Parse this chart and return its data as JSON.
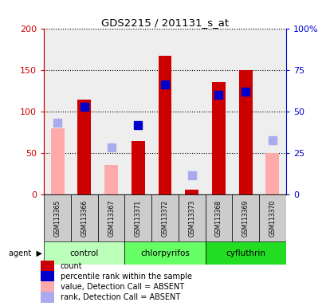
{
  "title": "GDS2215 / 201131_s_at",
  "samples": [
    "GSM113365",
    "GSM113366",
    "GSM113367",
    "GSM113371",
    "GSM113372",
    "GSM113373",
    "GSM113368",
    "GSM113369",
    "GSM113370"
  ],
  "groups": [
    {
      "name": "control",
      "samples_idx": [
        0,
        1,
        2
      ],
      "color": "#bbffbb"
    },
    {
      "name": "chlorpyrifos",
      "samples_idx": [
        3,
        4,
        5
      ],
      "color": "#77ff77"
    },
    {
      "name": "cyfluthrin",
      "samples_idx": [
        6,
        7,
        8
      ],
      "color": "#33ee33"
    }
  ],
  "red_bars": [
    null,
    115,
    null,
    64,
    168,
    6,
    136,
    150,
    null
  ],
  "blue_squares_left_scale": [
    null,
    106,
    null,
    84,
    133,
    null,
    120,
    124,
    null
  ],
  "pink_bars": [
    80,
    null,
    36,
    null,
    null,
    null,
    null,
    null,
    50
  ],
  "lightblue_squares_left_scale": [
    87,
    null,
    57,
    null,
    null,
    23,
    null,
    null,
    65
  ],
  "ylim_left": [
    0,
    200
  ],
  "ylim_right": [
    0,
    100
  ],
  "yticks_left": [
    0,
    50,
    100,
    150,
    200
  ],
  "ytick_labels_left": [
    "0",
    "50",
    "100",
    "150",
    "200"
  ],
  "yticks_right": [
    0,
    25,
    50,
    75,
    100
  ],
  "ytick_labels_right": [
    "0",
    "25",
    "50",
    "75",
    "100%"
  ],
  "red_color": "#cc0000",
  "blue_color": "#0000cc",
  "pink_color": "#ffaaaa",
  "lblue_color": "#aaaaee",
  "left_axis_color": "#cc0000",
  "right_axis_color": "#0000cc",
  "bar_width": 0.5,
  "marker_size": 7,
  "sample_row_color": "#cccccc",
  "plot_bg": "#eeeeee"
}
